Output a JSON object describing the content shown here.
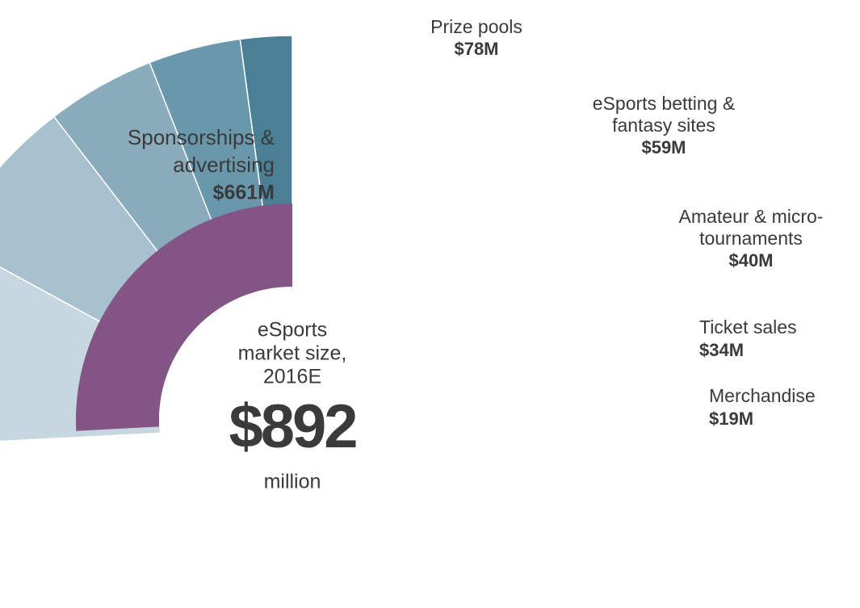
{
  "chart_data": {
    "type": "pie",
    "categories": [
      [
        "Sponsorships &",
        "advertising"
      ],
      [
        "Prize pools"
      ],
      [
        "eSports betting &",
        "fantasy sites"
      ],
      [
        "Amateur & micro-",
        "tournaments"
      ],
      [
        "Ticket sales"
      ],
      [
        "Merchandise"
      ]
    ],
    "values": [
      661,
      78,
      59,
      40,
      34,
      19
    ],
    "value_labels": [
      "$661M",
      "$78M",
      "$59M",
      "$40M",
      "$34M",
      "$19M"
    ],
    "shares": [
      null,
      9,
      7,
      4,
      4,
      2
    ],
    "share_labels": [
      null,
      "9%",
      "7%",
      "4%",
      "4%",
      "2%"
    ],
    "colors": [
      "#835585",
      "#c6d7e0",
      "#a8c1ce",
      "#89abbc",
      "#6997ac",
      "#4a7f96"
    ],
    "center_text": [
      "eSports",
      "market size,",
      "2016E"
    ],
    "total": 892,
    "total_label": "$892",
    "total_unit": "million"
  }
}
